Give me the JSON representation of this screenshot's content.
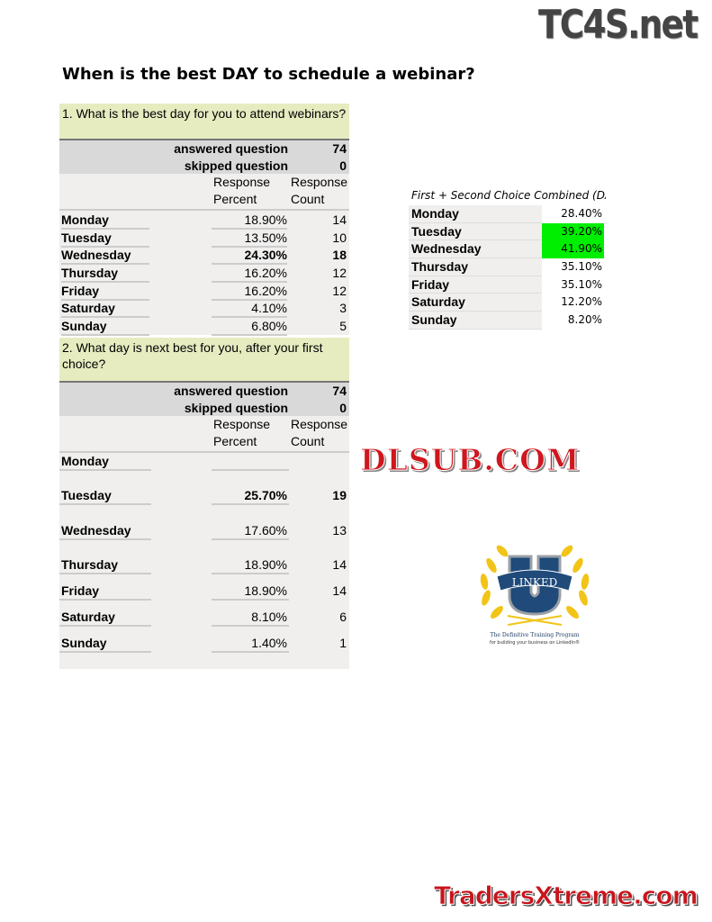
{
  "brand_top": "TC4S.net",
  "title": "When is the best DAY to schedule a webinar?",
  "q1": {
    "question": "1. What is the best day for you to attend webinars?",
    "answered_label": "answered question",
    "answered": "74",
    "skipped_label": "skipped question",
    "skipped": "0",
    "col_percent": "Response Percent",
    "col_count": "Response Count",
    "rows": [
      {
        "day": "Monday",
        "percent": "18.90%",
        "count": "14"
      },
      {
        "day": "Tuesday",
        "percent": "13.50%",
        "count": "10"
      },
      {
        "day": "Wednesday",
        "percent": "24.30%",
        "count": "18"
      },
      {
        "day": "Thursday",
        "percent": "16.20%",
        "count": "12"
      },
      {
        "day": "Friday",
        "percent": "16.20%",
        "count": "12"
      },
      {
        "day": "Saturday",
        "percent": "4.10%",
        "count": "3"
      },
      {
        "day": "Sunday",
        "percent": "6.80%",
        "count": "5"
      }
    ]
  },
  "q2": {
    "question": "2. What day is next best for you, after your first choice?",
    "answered_label": "answered question",
    "answered": "74",
    "skipped_label": "skipped question",
    "skipped": "0",
    "col_percent": "Response Percent",
    "col_count": "Response Count",
    "rows": [
      {
        "day": "Monday",
        "percent": "",
        "count": ""
      },
      {
        "day": "Tuesday",
        "percent": "25.70%",
        "count": "19"
      },
      {
        "day": "Wednesday",
        "percent": "17.60%",
        "count": "13"
      },
      {
        "day": "Thursday",
        "percent": "18.90%",
        "count": "14"
      },
      {
        "day": "Friday",
        "percent": "18.90%",
        "count": "14"
      },
      {
        "day": "Saturday",
        "percent": "8.10%",
        "count": "6"
      },
      {
        "day": "Sunday",
        "percent": "1.40%",
        "count": "1"
      }
    ]
  },
  "combined": {
    "heading": "First + Second Choice Combined (DAY)",
    "highlight_color": "#00ee00",
    "rows": [
      {
        "day": "Monday",
        "percent": "28.40%"
      },
      {
        "day": "Tuesday",
        "percent": "39.20%"
      },
      {
        "day": "Wednesday",
        "percent": "41.90%"
      },
      {
        "day": "Thursday",
        "percent": "35.10%"
      },
      {
        "day": "Friday",
        "percent": "35.10%"
      },
      {
        "day": "Saturday",
        "percent": "12.20%"
      },
      {
        "day": "Sunday",
        "percent": "8.20%"
      }
    ]
  },
  "watermark_mid": "DLSUB.COM",
  "watermark_bottom": "TradersXtreme.com",
  "linked_u": {
    "logo_letter": "U",
    "logo_banner": "LINKED",
    "caption1": "The Definitive Training Program",
    "caption2": "for building your business on LinkedIn®"
  }
}
